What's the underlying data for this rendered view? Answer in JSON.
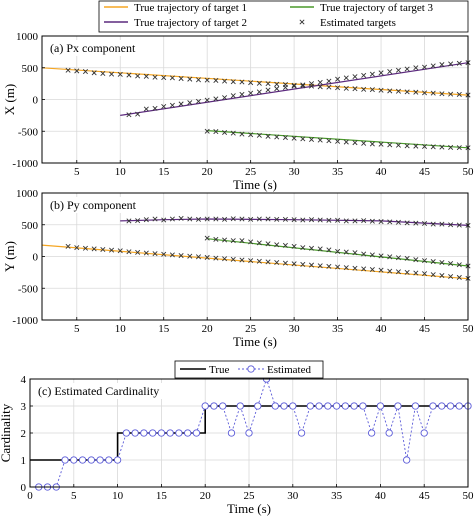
{
  "legend_top": {
    "items": [
      {
        "label": "True trajectory of target 1",
        "color": "#f5a623",
        "kind": "line"
      },
      {
        "label": "True trajectory of target 3",
        "color": "#4a9a2a",
        "kind": "line"
      },
      {
        "label": "True trajectory of target 2",
        "color": "#5c2a7e",
        "kind": "line"
      },
      {
        "label": "Estimated targets",
        "color": "#333333",
        "kind": "x"
      }
    ]
  },
  "legend_card": {
    "items": [
      {
        "label": "True",
        "color": "#000000",
        "kind": "line"
      },
      {
        "label": "Estimated",
        "color": "#5a5ad8",
        "kind": "circle-dot"
      }
    ]
  },
  "chart_data": [
    {
      "type": "line",
      "title": "(a)  Px component",
      "xlabel": "Time (s)",
      "ylabel": "X (m)",
      "xlim": [
        1,
        50
      ],
      "ylim": [
        -1000,
        1000
      ],
      "xticks": [
        5,
        10,
        15,
        20,
        25,
        30,
        35,
        40,
        45,
        50
      ],
      "yticks": [
        -1000,
        -500,
        0,
        500,
        1000
      ],
      "grid": true,
      "series": [
        {
          "name": "True trajectory of target 1",
          "color": "#f5a623",
          "x": [
            1,
            50
          ],
          "y": [
            500,
            70
          ]
        },
        {
          "name": "True trajectory of target 2",
          "color": "#5c2a7e",
          "x": [
            10,
            50
          ],
          "y": [
            -250,
            580
          ]
        },
        {
          "name": "True trajectory of target 3",
          "color": "#4a9a2a",
          "x": [
            20,
            50
          ],
          "y": [
            -490,
            -760
          ]
        }
      ],
      "estimates": {
        "name": "Estimated targets",
        "points": [
          [
            4,
            460
          ],
          [
            5,
            450
          ],
          [
            6,
            440
          ],
          [
            7,
            420
          ],
          [
            8,
            410
          ],
          [
            9,
            400
          ],
          [
            10,
            395
          ],
          [
            11,
            385
          ],
          [
            12,
            370
          ],
          [
            13,
            365
          ],
          [
            14,
            350
          ],
          [
            15,
            345
          ],
          [
            16,
            340
          ],
          [
            17,
            330
          ],
          [
            18,
            320
          ],
          [
            19,
            310
          ],
          [
            20,
            305
          ],
          [
            21,
            300
          ],
          [
            22,
            290
          ],
          [
            23,
            280
          ],
          [
            24,
            275
          ],
          [
            25,
            265
          ],
          [
            26,
            255
          ],
          [
            27,
            250
          ],
          [
            28,
            240
          ],
          [
            29,
            235
          ],
          [
            30,
            225
          ],
          [
            31,
            215
          ],
          [
            32,
            210
          ],
          [
            33,
            200
          ],
          [
            34,
            195
          ],
          [
            35,
            185
          ],
          [
            36,
            175
          ],
          [
            37,
            170
          ],
          [
            38,
            160
          ],
          [
            39,
            155
          ],
          [
            40,
            145
          ],
          [
            41,
            135
          ],
          [
            42,
            130
          ],
          [
            43,
            120
          ],
          [
            44,
            115
          ],
          [
            45,
            105
          ],
          [
            46,
            100
          ],
          [
            47,
            90
          ],
          [
            48,
            85
          ],
          [
            49,
            80
          ],
          [
            50,
            70
          ],
          [
            11,
            -240
          ],
          [
            12,
            -230
          ],
          [
            13,
            -150
          ],
          [
            14,
            -140
          ],
          [
            15,
            -110
          ],
          [
            16,
            -90
          ],
          [
            17,
            -70
          ],
          [
            18,
            -50
          ],
          [
            19,
            -30
          ],
          [
            20,
            -10
          ],
          [
            21,
            10
          ],
          [
            22,
            30
          ],
          [
            23,
            60
          ],
          [
            24,
            80
          ],
          [
            25,
            100
          ],
          [
            26,
            120
          ],
          [
            27,
            150
          ],
          [
            28,
            170
          ],
          [
            29,
            190
          ],
          [
            30,
            210
          ],
          [
            31,
            230
          ],
          [
            32,
            250
          ],
          [
            33,
            270
          ],
          [
            34,
            290
          ],
          [
            35,
            320
          ],
          [
            36,
            340
          ],
          [
            37,
            360
          ],
          [
            38,
            380
          ],
          [
            39,
            400
          ],
          [
            40,
            420
          ],
          [
            41,
            440
          ],
          [
            42,
            460
          ],
          [
            43,
            480
          ],
          [
            44,
            500
          ],
          [
            45,
            510
          ],
          [
            46,
            530
          ],
          [
            47,
            550
          ],
          [
            48,
            560
          ],
          [
            49,
            570
          ],
          [
            50,
            580
          ],
          [
            20,
            -500
          ],
          [
            21,
            -505
          ],
          [
            22,
            -520
          ],
          [
            23,
            -530
          ],
          [
            24,
            -545
          ],
          [
            25,
            -555
          ],
          [
            26,
            -565
          ],
          [
            27,
            -580
          ],
          [
            28,
            -590
          ],
          [
            29,
            -600
          ],
          [
            30,
            -610
          ],
          [
            31,
            -620
          ],
          [
            32,
            -630
          ],
          [
            33,
            -640
          ],
          [
            34,
            -650
          ],
          [
            35,
            -660
          ],
          [
            36,
            -670
          ],
          [
            37,
            -680
          ],
          [
            38,
            -690
          ],
          [
            39,
            -700
          ],
          [
            40,
            -705
          ],
          [
            41,
            -715
          ],
          [
            42,
            -720
          ],
          [
            43,
            -730
          ],
          [
            44,
            -735
          ],
          [
            45,
            -740
          ],
          [
            46,
            -745
          ],
          [
            47,
            -750
          ],
          [
            48,
            -755
          ],
          [
            49,
            -758
          ],
          [
            50,
            -760
          ]
        ]
      }
    },
    {
      "type": "line",
      "title": "(b)  Py component",
      "xlabel": "Time (s)",
      "ylabel": "Y (m)",
      "xlim": [
        1,
        50
      ],
      "ylim": [
        -1000,
        1000
      ],
      "xticks": [
        5,
        10,
        15,
        20,
        25,
        30,
        35,
        40,
        45,
        50
      ],
      "yticks": [
        -1000,
        -500,
        0,
        500,
        1000
      ],
      "grid": true,
      "series": [
        {
          "name": "True trajectory of target 1",
          "color": "#f5a623",
          "x": [
            1,
            50
          ],
          "y": [
            180,
            -350
          ]
        },
        {
          "name": "True trajectory of target 2",
          "color": "#5c2a7e",
          "x": [
            10,
            15,
            20,
            30,
            40,
            50
          ],
          "y": [
            560,
            580,
            590,
            580,
            560,
            490
          ]
        },
        {
          "name": "True trajectory of target 3",
          "color": "#4a9a2a",
          "x": [
            20,
            50
          ],
          "y": [
            280,
            -150
          ]
        }
      ],
      "estimates": {
        "name": "Estimated targets",
        "points": [
          [
            4,
            160
          ],
          [
            5,
            140
          ],
          [
            6,
            130
          ],
          [
            7,
            120
          ],
          [
            8,
            110
          ],
          [
            9,
            100
          ],
          [
            10,
            90
          ],
          [
            11,
            75
          ],
          [
            12,
            65
          ],
          [
            13,
            55
          ],
          [
            14,
            45
          ],
          [
            15,
            35
          ],
          [
            16,
            25
          ],
          [
            17,
            15
          ],
          [
            18,
            5
          ],
          [
            19,
            -5
          ],
          [
            20,
            -15
          ],
          [
            21,
            -25
          ],
          [
            22,
            -35
          ],
          [
            23,
            -45
          ],
          [
            24,
            -55
          ],
          [
            25,
            -65
          ],
          [
            26,
            -75
          ],
          [
            27,
            -85
          ],
          [
            28,
            -95
          ],
          [
            29,
            -105
          ],
          [
            30,
            -115
          ],
          [
            31,
            -125
          ],
          [
            32,
            -135
          ],
          [
            33,
            -145
          ],
          [
            34,
            -155
          ],
          [
            35,
            -165
          ],
          [
            36,
            -175
          ],
          [
            37,
            -185
          ],
          [
            38,
            -195
          ],
          [
            39,
            -205
          ],
          [
            40,
            -215
          ],
          [
            41,
            -230
          ],
          [
            42,
            -240
          ],
          [
            43,
            -250
          ],
          [
            44,
            -260
          ],
          [
            45,
            -270
          ],
          [
            46,
            -285
          ],
          [
            47,
            -300
          ],
          [
            48,
            -315
          ],
          [
            49,
            -330
          ],
          [
            50,
            -345
          ],
          [
            11,
            560
          ],
          [
            12,
            565
          ],
          [
            13,
            580
          ],
          [
            14,
            590
          ],
          [
            15,
            575
          ],
          [
            16,
            590
          ],
          [
            17,
            600
          ],
          [
            18,
            590
          ],
          [
            19,
            585
          ],
          [
            20,
            590
          ],
          [
            21,
            590
          ],
          [
            22,
            585
          ],
          [
            23,
            595
          ],
          [
            24,
            590
          ],
          [
            25,
            585
          ],
          [
            26,
            590
          ],
          [
            27,
            590
          ],
          [
            28,
            585
          ],
          [
            29,
            585
          ],
          [
            30,
            580
          ],
          [
            31,
            575
          ],
          [
            32,
            580
          ],
          [
            33,
            575
          ],
          [
            34,
            570
          ],
          [
            35,
            570
          ],
          [
            36,
            560
          ],
          [
            37,
            560
          ],
          [
            38,
            565
          ],
          [
            39,
            555
          ],
          [
            40,
            550
          ],
          [
            41,
            545
          ],
          [
            42,
            540
          ],
          [
            43,
            530
          ],
          [
            44,
            525
          ],
          [
            45,
            520
          ],
          [
            46,
            510
          ],
          [
            47,
            510
          ],
          [
            48,
            500
          ],
          [
            49,
            495
          ],
          [
            50,
            490
          ],
          [
            20,
            290
          ],
          [
            21,
            270
          ],
          [
            22,
            260
          ],
          [
            23,
            250
          ],
          [
            24,
            250
          ],
          [
            25,
            230
          ],
          [
            26,
            215
          ],
          [
            27,
            200
          ],
          [
            28,
            185
          ],
          [
            29,
            175
          ],
          [
            30,
            160
          ],
          [
            31,
            140
          ],
          [
            32,
            130
          ],
          [
            33,
            120
          ],
          [
            34,
            105
          ],
          [
            35,
            80
          ],
          [
            36,
            70
          ],
          [
            37,
            60
          ],
          [
            38,
            40
          ],
          [
            39,
            25
          ],
          [
            40,
            10
          ],
          [
            41,
            -5
          ],
          [
            42,
            -20
          ],
          [
            43,
            -30
          ],
          [
            44,
            -50
          ],
          [
            45,
            -65
          ],
          [
            46,
            -80
          ],
          [
            47,
            -95
          ],
          [
            48,
            -110
          ],
          [
            49,
            -130
          ],
          [
            50,
            -150
          ]
        ]
      }
    },
    {
      "type": "line",
      "title": "(c)  Estimated Cardinality",
      "xlabel": "Time (s)",
      "ylabel": "Cardinality",
      "xlim": [
        0,
        50
      ],
      "ylim": [
        0,
        4
      ],
      "xticks": [
        0,
        5,
        10,
        15,
        20,
        25,
        30,
        35,
        40,
        45,
        50
      ],
      "yticks": [
        0,
        1,
        2,
        3,
        4
      ],
      "grid": true,
      "series": [
        {
          "name": "True",
          "color": "#000000",
          "x": [
            0,
            10,
            10,
            20,
            20,
            50
          ],
          "y": [
            1,
            1,
            2,
            2,
            3,
            3
          ]
        },
        {
          "name": "Estimated",
          "color": "#5a5ad8",
          "x": [
            1,
            2,
            3,
            4,
            5,
            6,
            7,
            8,
            9,
            10,
            11,
            12,
            13,
            14,
            15,
            16,
            17,
            18,
            19,
            20,
            21,
            22,
            23,
            24,
            25,
            26,
            27,
            28,
            29,
            30,
            31,
            32,
            33,
            34,
            35,
            36,
            37,
            38,
            39,
            40,
            41,
            42,
            43,
            44,
            45,
            46,
            47,
            48,
            49,
            50
          ],
          "y": [
            0,
            0,
            0,
            1,
            1,
            1,
            1,
            1,
            1,
            1,
            2,
            2,
            2,
            2,
            2,
            2,
            2,
            2,
            2,
            3,
            3,
            3,
            2,
            3,
            2,
            3,
            4,
            3,
            3,
            3,
            2,
            3,
            3,
            3,
            3,
            3,
            3,
            3,
            2,
            3,
            2,
            3,
            1,
            3,
            2,
            3,
            3,
            3,
            3,
            3
          ]
        }
      ]
    }
  ]
}
